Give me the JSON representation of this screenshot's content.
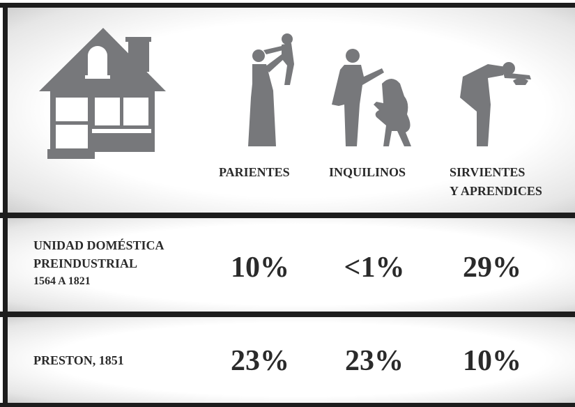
{
  "header": {
    "columns": [
      [
        "PARIENTES"
      ],
      [
        "INQUILINOS"
      ],
      [
        "SIRVIENTES",
        "Y APRENDICES"
      ]
    ]
  },
  "rows": [
    {
      "label": [
        "UNIDAD DOMÉSTICA",
        "PREINDUSTRIAL",
        "1564 A 1821"
      ],
      "values": [
        "10%",
        "<1%",
        "29%"
      ]
    },
    {
      "label": [
        "PRESTON, 1851"
      ],
      "values": [
        "23%",
        "23%",
        "10%"
      ]
    }
  ]
}
